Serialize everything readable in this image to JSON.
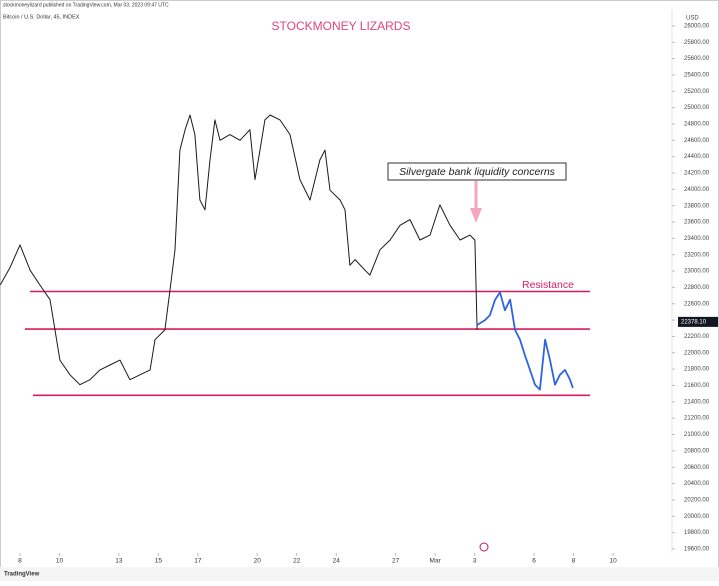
{
  "chart_data": {
    "type": "line",
    "title": "STOCKMONEY LIZARDS",
    "title_color": "#e0457b",
    "byline": "stockmoneylizard published on TradingView.com, Mar 03, 2023 09:47 UTC",
    "subtitle": "Bitcoin / U.S. Dollar, 45, INDEX",
    "y_unit": "USD",
    "branding": "TradingView",
    "xlim": [
      6.99,
      40.98
    ],
    "ylim": [
      19550,
      26170
    ],
    "xticks": [
      8,
      10,
      13,
      15,
      17,
      20,
      22,
      24,
      27,
      {
        "value": 29,
        "label": "Mar"
      },
      {
        "value": 31,
        "label": "3"
      },
      {
        "value": 34,
        "label": "6"
      },
      {
        "value": 36,
        "label": "8"
      },
      {
        "value": 38,
        "label": "10"
      }
    ],
    "yticks": [
      {
        "value": 19600,
        "label": "19600.00"
      },
      {
        "value": 19800,
        "label": "19800.00"
      },
      {
        "value": 20000,
        "label": "20000.00"
      },
      {
        "value": 20200,
        "label": "20200.00"
      },
      {
        "value": 20400,
        "label": "20400.00"
      },
      {
        "value": 20600,
        "label": "20600.00"
      },
      {
        "value": 20800,
        "label": "20800.00"
      },
      {
        "value": 21000,
        "label": "21000.00"
      },
      {
        "value": 21200,
        "label": "21200.00"
      },
      {
        "value": 21400,
        "label": "21400.00"
      },
      {
        "value": 21600,
        "label": "21600.00"
      },
      {
        "value": 21800,
        "label": "21800.00"
      },
      {
        "value": 22000,
        "label": "22000.00"
      },
      {
        "value": 22200,
        "label": "22200.00"
      },
      {
        "value": 22400,
        "label": "22400.00"
      },
      {
        "value": 22600,
        "label": "22600.00"
      },
      {
        "value": 22800,
        "label": "22800.00"
      },
      {
        "value": 23000,
        "label": "23000.00"
      },
      {
        "value": 23200,
        "label": "23200.00"
      },
      {
        "value": 23400,
        "label": "23400.00"
      },
      {
        "value": 23600,
        "label": "23600.00"
      },
      {
        "value": 23800,
        "label": "23800.00"
      },
      {
        "value": 24000,
        "label": "24000.00"
      },
      {
        "value": 24200,
        "label": "24200.00"
      },
      {
        "value": 24400,
        "label": "24400.00"
      },
      {
        "value": 24600,
        "label": "24600.00"
      },
      {
        "value": 24800,
        "label": "24800.00"
      },
      {
        "value": 25000,
        "label": "25000.00"
      },
      {
        "value": 25200,
        "label": "25200.00"
      },
      {
        "value": 25400,
        "label": "25400.00"
      },
      {
        "value": 25600,
        "label": "25600.00"
      },
      {
        "value": 25800,
        "label": "25800.00"
      },
      {
        "value": 26000,
        "label": "26000.00"
      }
    ],
    "series": [
      {
        "color": "#1a1a1a",
        "x": [
          7.0,
          7.49,
          8.0,
          8.51,
          9.01,
          9.52,
          9.77,
          10.02,
          10.53,
          11.03,
          11.54,
          12.05,
          12.55,
          13.06,
          13.56,
          14.07,
          14.58,
          14.83,
          15.33,
          15.59,
          15.84,
          16.09,
          16.35,
          16.6,
          16.85,
          17.1,
          17.36,
          17.61,
          17.86,
          18.12,
          18.62,
          19.13,
          19.63,
          19.89,
          20.14,
          20.39,
          20.65,
          21.15,
          21.66,
          22.16,
          22.67,
          23.17,
          23.43,
          23.68,
          24.19,
          24.44,
          24.69,
          24.95,
          25.45,
          25.7,
          26.21,
          26.72,
          27.22,
          27.73,
          28.23,
          28.74,
          29.24,
          29.75,
          30.26,
          30.76,
          31.01,
          31.12
        ],
        "values": [
          22830,
          23040,
          23320,
          23010,
          22830,
          22650,
          22280,
          21910,
          21730,
          21610,
          21670,
          21790,
          21850,
          21910,
          21670,
          21730,
          21790,
          22160,
          22280,
          22770,
          23260,
          24480,
          24730,
          24910,
          24670,
          23870,
          23750,
          24360,
          24850,
          24600,
          24670,
          24600,
          24730,
          24120,
          24480,
          24850,
          24910,
          24850,
          24670,
          24120,
          23870,
          24360,
          24480,
          23990,
          23870,
          23750,
          23070,
          23140,
          23010,
          22950,
          23260,
          23380,
          23560,
          23630,
          23380,
          23440,
          23810,
          23560,
          23380,
          23440,
          23380,
          22280
        ]
      },
      {
        "color": "#2f64e0",
        "x": [
          31.12,
          31.52,
          31.77,
          32.03,
          32.28,
          32.53,
          32.79,
          33.04,
          33.29,
          33.54,
          33.8,
          34.05,
          34.3,
          34.56,
          34.81,
          35.06,
          35.31,
          35.57,
          35.82,
          35.97
        ],
        "values": [
          22340,
          22400,
          22460,
          22650,
          22740,
          22520,
          22650,
          22280,
          22160,
          21970,
          21790,
          21610,
          21550,
          22160,
          21910,
          21610,
          21730,
          21790,
          21670,
          21570
        ]
      }
    ],
    "hlines": [
      {
        "value": 22750,
        "x": [
          8.5,
          36.83
        ]
      },
      {
        "value": 22290,
        "x": [
          8.25,
          36.83
        ]
      },
      {
        "value": 21480,
        "x": [
          8.66,
          36.83
        ]
      }
    ],
    "hline_color": "#d81b60",
    "price_label": {
      "value": 22378.1,
      "label": "22378.10"
    },
    "annotations": [
      "Silvergate bank liquidity concerns",
      "Resistance"
    ]
  }
}
